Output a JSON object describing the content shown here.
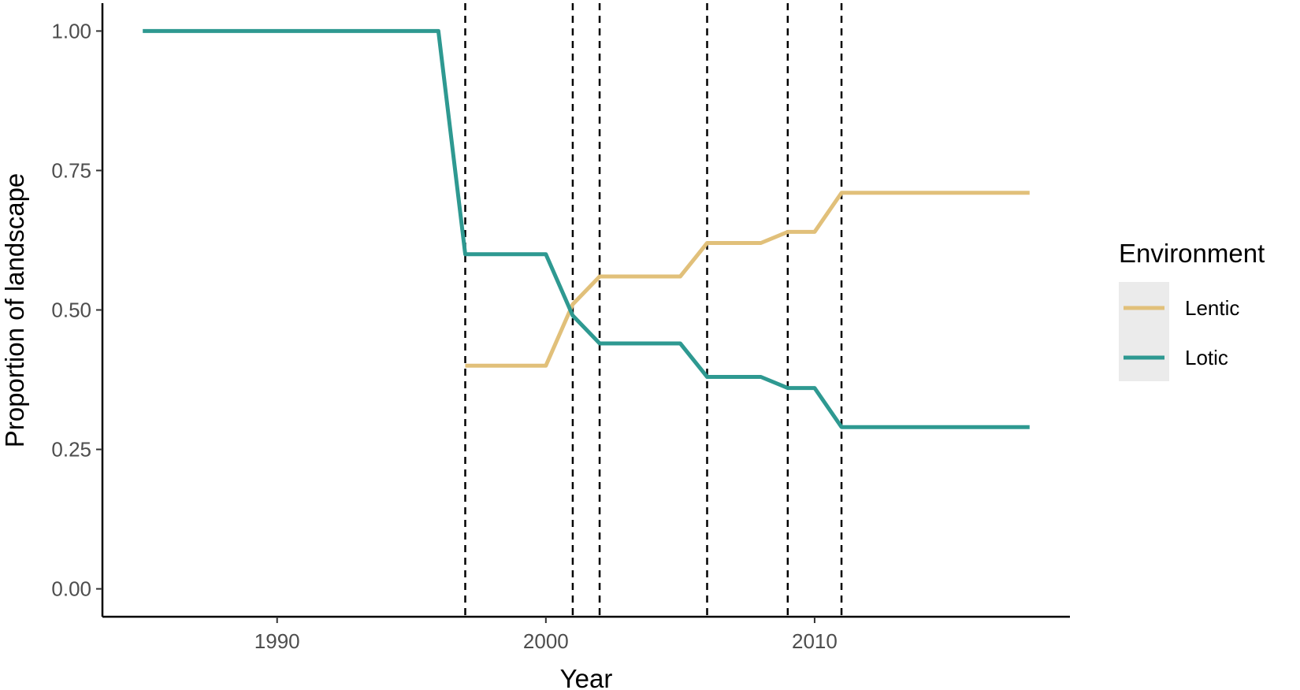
{
  "chart_data": {
    "type": "line",
    "title": "",
    "xlabel": "Year",
    "ylabel": "Proportion of landscape",
    "xlim": [
      1983.5,
      2019.5
    ],
    "ylim": [
      -0.05,
      1.05
    ],
    "x_ticks": [
      1990,
      2000,
      2010
    ],
    "x_tick_labels": [
      "1990",
      "2000",
      "2010"
    ],
    "y_ticks": [
      0,
      0.25,
      0.5,
      0.75,
      1.0
    ],
    "y_tick_labels": [
      "0.00",
      "0.25",
      "0.50",
      "0.75",
      "1.00"
    ],
    "grid": false,
    "legend": {
      "title": "Environment",
      "position": "right"
    },
    "vlines": [
      1997,
      2001,
      2002,
      2006,
      2009,
      2011
    ],
    "series": [
      {
        "name": "Lentic",
        "color": "#E1C07A",
        "x": [
          1997,
          2000,
          2001,
          2002,
          2005,
          2006,
          2008,
          2009,
          2010,
          2011,
          2018
        ],
        "y": [
          0.4,
          0.4,
          0.51,
          0.56,
          0.56,
          0.62,
          0.62,
          0.64,
          0.64,
          0.71,
          0.71
        ]
      },
      {
        "name": "Lotic",
        "color": "#2E9991",
        "x": [
          1985,
          1996,
          1997,
          2000,
          2001,
          2002,
          2005,
          2006,
          2008,
          2009,
          2010,
          2011,
          2018
        ],
        "y": [
          1.0,
          1.0,
          0.6,
          0.6,
          0.49,
          0.44,
          0.44,
          0.38,
          0.38,
          0.36,
          0.36,
          0.29,
          0.29
        ]
      }
    ]
  }
}
